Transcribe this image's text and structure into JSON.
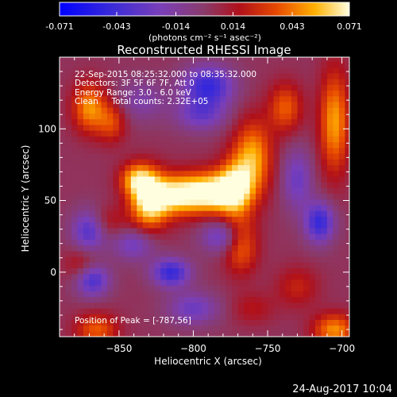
{
  "chart_data": {
    "type": "heatmap",
    "title": "Reconstructed RHESSI Image",
    "xlabel": "Heliocentric X (arcsec)",
    "ylabel": "Heliocentric Y (arcsec)",
    "xlim": [
      -890,
      -695
    ],
    "ylim": [
      -45,
      150
    ],
    "xticks": [
      -850,
      -800,
      -750,
      -700
    ],
    "yticks": [
      0,
      50,
      100
    ],
    "colorbar": {
      "min": -0.071,
      "max": 0.071,
      "ticks": [
        "-0.071",
        "-0.043",
        "-0.014",
        "0.014",
        "0.043",
        "0.071"
      ],
      "units_label": "(photons cm⁻² s⁻¹ asec⁻²)"
    },
    "annotations": [
      "22-Sep-2015 08:25:32.000 to 08:35:32.000",
      "Detectors: 3F 5F 6F 7F, Att 0",
      "Energy Range: 3.0 - 6.0 keV",
      "Clean     Total counts: 2.32E+05"
    ],
    "peak_label": "Position of Peak = [-787,56]",
    "peak": [
      -787,
      56
    ],
    "blobs": [
      {
        "x": -787,
        "y": 56,
        "sx": 14,
        "sy": 10,
        "v": 0.071
      },
      {
        "x": -812,
        "y": 54,
        "sx": 12,
        "sy": 10,
        "v": 0.055
      },
      {
        "x": -830,
        "y": 50,
        "sx": 9,
        "sy": 14,
        "v": 0.064
      },
      {
        "x": -838,
        "y": 65,
        "sx": 8,
        "sy": 8,
        "v": 0.045
      },
      {
        "x": -760,
        "y": 80,
        "sx": 9,
        "sy": 18,
        "v": 0.05
      },
      {
        "x": -772,
        "y": 60,
        "sx": 8,
        "sy": 14,
        "v": 0.045
      },
      {
        "x": -768,
        "y": 20,
        "sx": 8,
        "sy": 14,
        "v": 0.04
      },
      {
        "x": -705,
        "y": 105,
        "sx": 7,
        "sy": 25,
        "v": 0.048
      },
      {
        "x": -738,
        "y": 115,
        "sx": 8,
        "sy": 12,
        "v": 0.035
      },
      {
        "x": -870,
        "y": 115,
        "sx": 8,
        "sy": 12,
        "v": 0.045
      },
      {
        "x": -855,
        "y": 105,
        "sx": 7,
        "sy": 10,
        "v": 0.03
      },
      {
        "x": -860,
        "y": 35,
        "sx": 10,
        "sy": 8,
        "v": 0.02
      },
      {
        "x": -875,
        "y": 5,
        "sx": 8,
        "sy": 8,
        "v": 0.02
      },
      {
        "x": -865,
        "y": -40,
        "sx": 10,
        "sy": 8,
        "v": 0.035
      },
      {
        "x": -705,
        "y": -40,
        "sx": 10,
        "sy": 8,
        "v": 0.045
      },
      {
        "x": -730,
        "y": -10,
        "sx": 10,
        "sy": 10,
        "v": 0.02
      },
      {
        "x": -760,
        "y": -25,
        "sx": 10,
        "sy": 8,
        "v": 0.015
      },
      {
        "x": -790,
        "y": 130,
        "sx": 12,
        "sy": 10,
        "v": -0.05
      },
      {
        "x": -795,
        "y": 110,
        "sx": 12,
        "sy": 8,
        "v": -0.03
      },
      {
        "x": -835,
        "y": 120,
        "sx": 12,
        "sy": 10,
        "v": -0.02
      },
      {
        "x": -870,
        "y": 30,
        "sx": 8,
        "sy": 10,
        "v": -0.045
      },
      {
        "x": -868,
        "y": -5,
        "sx": 8,
        "sy": 8,
        "v": -0.045
      },
      {
        "x": -815,
        "y": 0,
        "sx": 9,
        "sy": 7,
        "v": -0.05
      },
      {
        "x": -840,
        "y": 20,
        "sx": 10,
        "sy": 8,
        "v": -0.03
      },
      {
        "x": -780,
        "y": 25,
        "sx": 10,
        "sy": 8,
        "v": -0.035
      },
      {
        "x": -800,
        "y": -25,
        "sx": 12,
        "sy": 8,
        "v": -0.03
      },
      {
        "x": -715,
        "y": 35,
        "sx": 7,
        "sy": 10,
        "v": -0.05
      },
      {
        "x": -730,
        "y": 65,
        "sx": 7,
        "sy": 15,
        "v": -0.03
      }
    ],
    "background": 0.003
  },
  "footer_date": "24-Aug-2017 10:04"
}
